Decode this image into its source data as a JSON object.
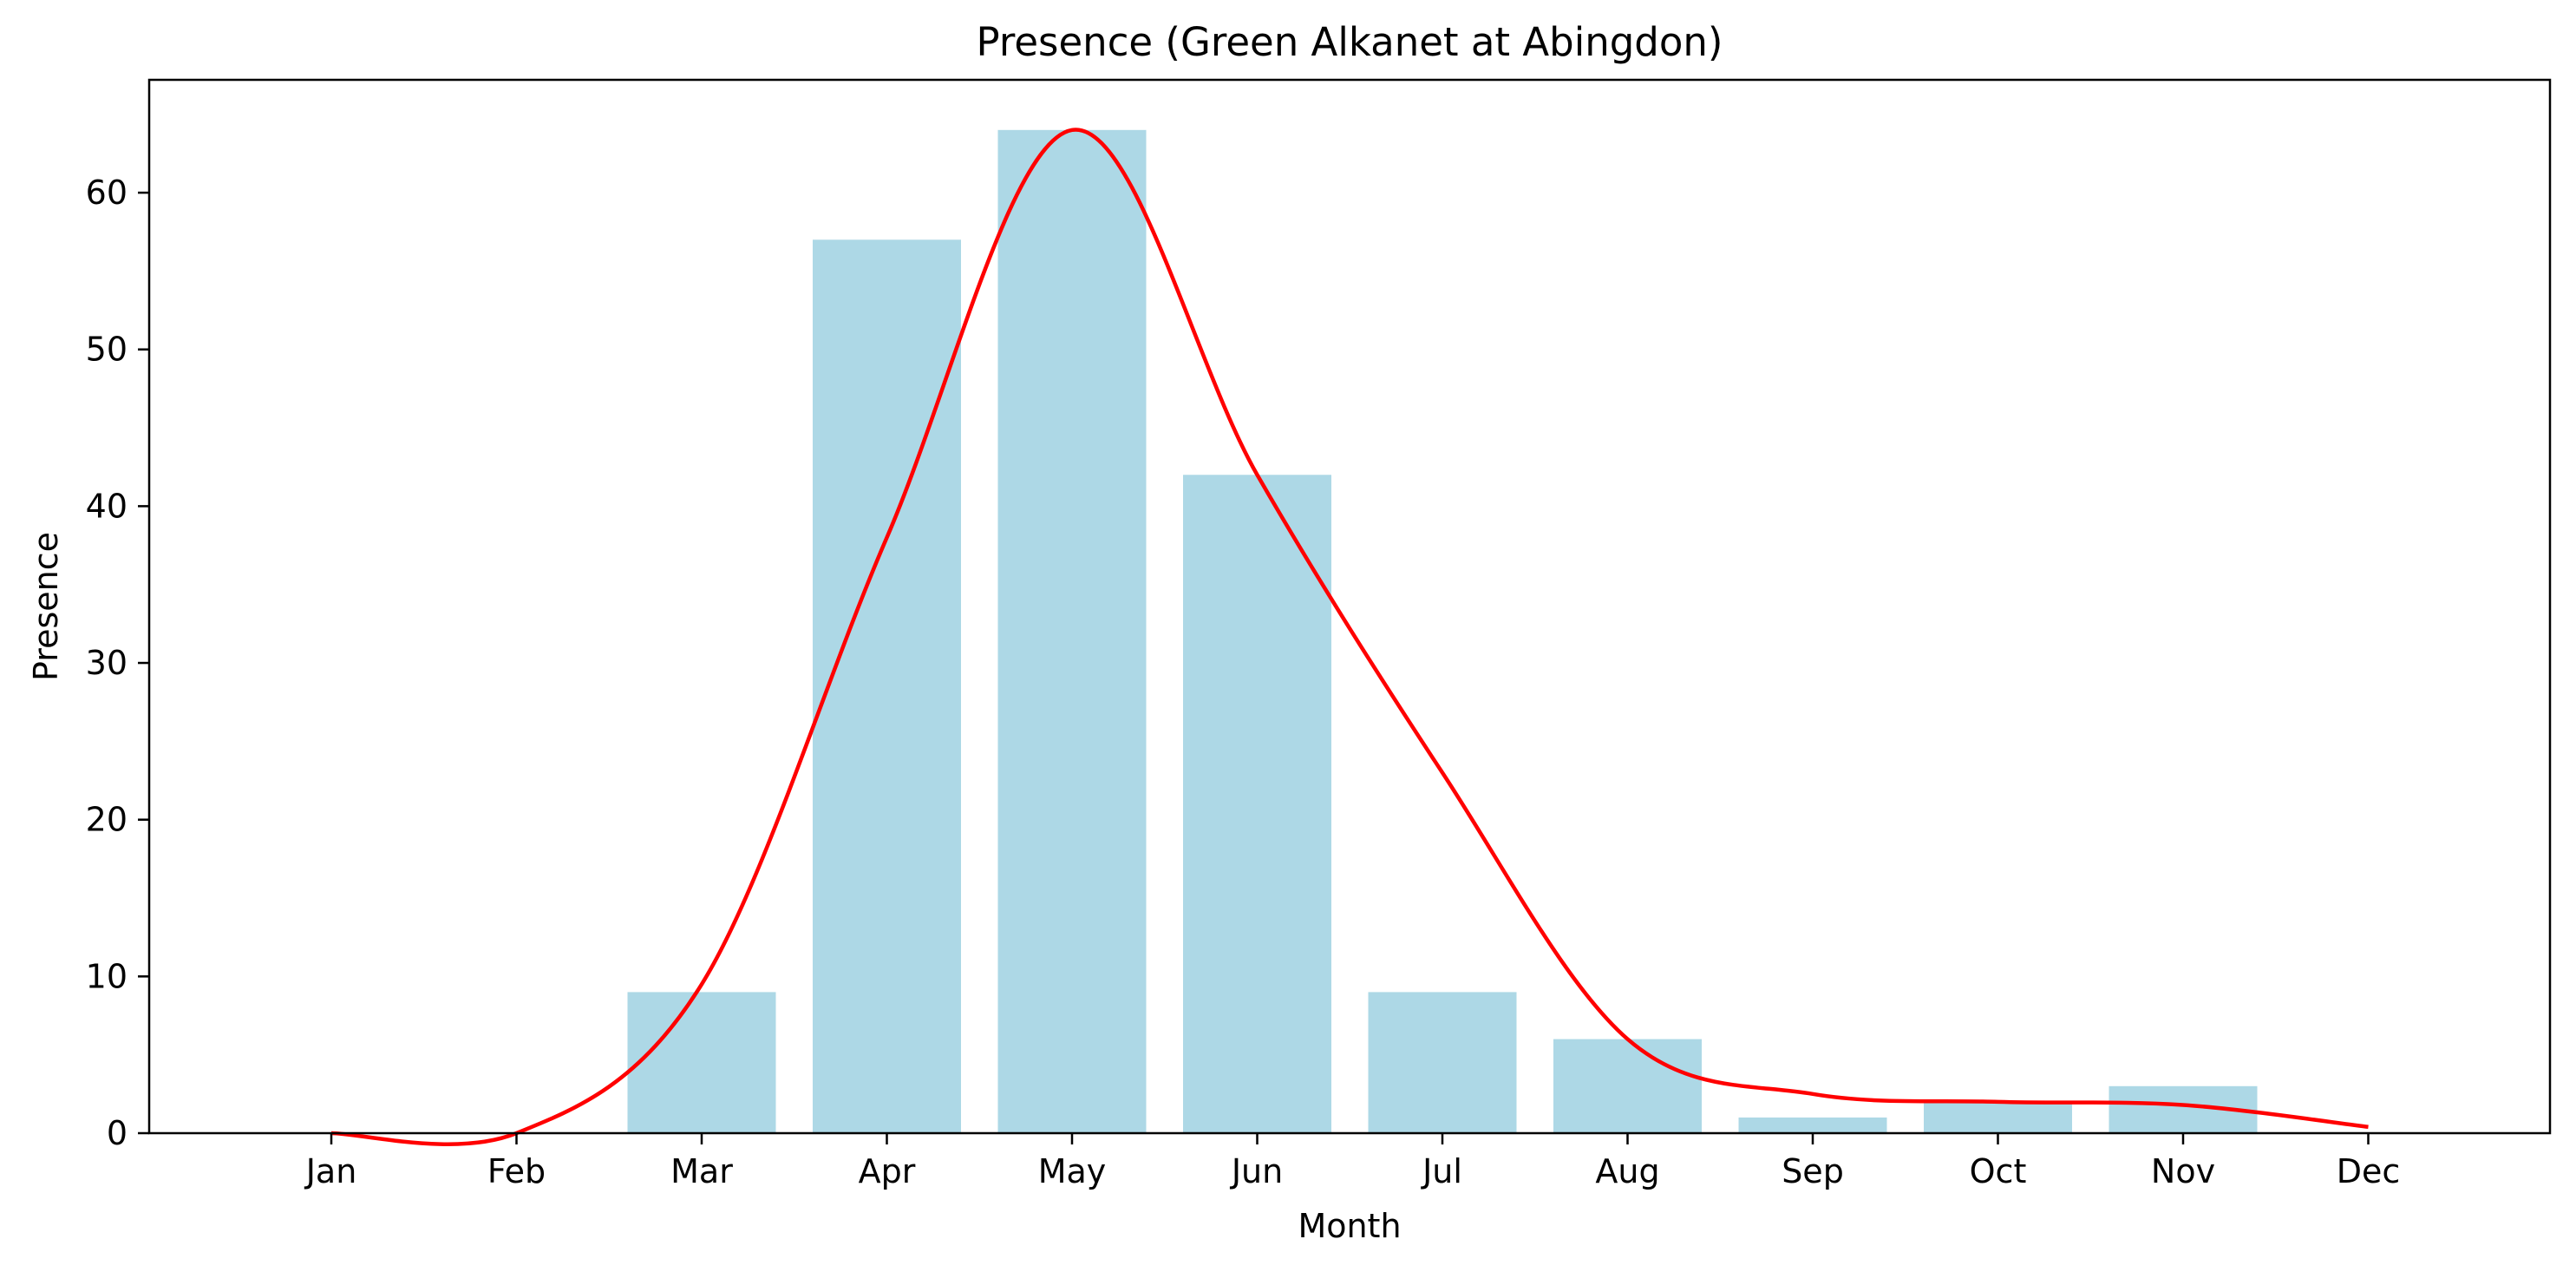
{
  "chart_data": {
    "type": "bar",
    "title": "Presence (Green Alkanet at Abingdon)",
    "xlabel": "Month",
    "ylabel": "Presence",
    "categories": [
      "Jan",
      "Feb",
      "Mar",
      "Apr",
      "May",
      "Jun",
      "Jul",
      "Aug",
      "Sep",
      "Oct",
      "Nov",
      "Dec"
    ],
    "series": [
      {
        "type": "bar",
        "color": "#add8e6",
        "values": [
          0,
          0,
          9,
          57,
          64,
          42,
          9,
          6,
          1,
          2,
          3,
          0
        ]
      },
      {
        "type": "line",
        "color": "#ff0000",
        "values": [
          0,
          0,
          9.5,
          38,
          64,
          42,
          23,
          6,
          2.5,
          2,
          1.8,
          0.4
        ]
      }
    ],
    "ylim": [
      0,
      67.2
    ],
    "yticks": [
      0,
      10,
      20,
      30,
      40,
      50,
      60
    ],
    "grid": false,
    "legend": false
  }
}
